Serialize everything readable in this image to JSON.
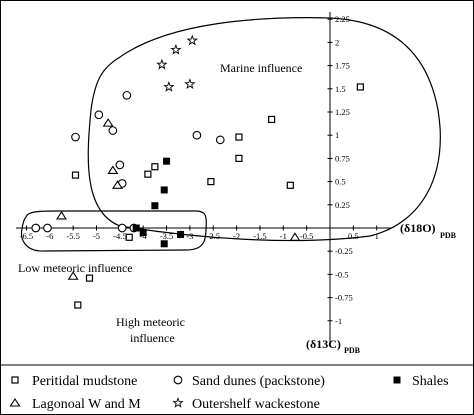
{
  "chart_data": {
    "type": "scatter",
    "x_axis": {
      "label_main": "(δ18O)",
      "label_sub": "PDB",
      "range": [
        -6.5,
        1.3
      ],
      "ticks": [
        -6.5,
        -6,
        -5.5,
        -5,
        -4.5,
        -4,
        -3.5,
        -3,
        -2.5,
        -2,
        -1.5,
        -1,
        -0.5,
        0.5,
        1
      ],
      "tick_labels": [
        "-6.5",
        "-6",
        "-5.5",
        "-5",
        "-4.5",
        "-4",
        "-3.5",
        "-3",
        "-2.5",
        "-2",
        "-1.5",
        "-1",
        "-0.5",
        "0.5",
        "1"
      ]
    },
    "y_axis": {
      "label_main": "(δ13C)",
      "label_sub": "PDB",
      "range": [
        -1.25,
        2.3
      ],
      "ticks": [
        -1,
        -0.75,
        -0.5,
        -0.25,
        0.25,
        0.5,
        0.75,
        1,
        1.25,
        1.5,
        1.75,
        2,
        2.25
      ],
      "tick_labels": [
        "-1",
        "-0.75",
        "-0.5",
        "-0.25",
        "0.25",
        "0.5",
        "0.75",
        "1",
        "1.25",
        "1.5",
        "1.75",
        "2",
        "2.25"
      ]
    },
    "grid": false,
    "legend_position": "bottom",
    "annotations": [
      "Marine influence",
      "Low meteoric influence",
      "High meteoric",
      "influence"
    ],
    "series": [
      {
        "name": "Peritidal mudstone",
        "marker": "square-open",
        "points": [
          [
            0.65,
            1.52
          ],
          [
            -1.25,
            1.17
          ],
          [
            -1.95,
            0.98
          ],
          [
            -1.95,
            0.75
          ],
          [
            -2.55,
            0.5
          ],
          [
            -0.85,
            0.46
          ],
          [
            -5.45,
            0.57
          ],
          [
            -3.9,
            0.58
          ],
          [
            -3.75,
            0.66
          ],
          [
            -4.3,
            -0.1
          ],
          [
            -5.15,
            -0.54
          ],
          [
            -5.4,
            -0.83
          ]
        ]
      },
      {
        "name": "Sand dunes (packstone)",
        "marker": "circle-open",
        "points": [
          [
            -4.35,
            1.43
          ],
          [
            -4.95,
            1.22
          ],
          [
            -5.45,
            0.98
          ],
          [
            -4.65,
            1.05
          ],
          [
            -2.85,
            1.0
          ],
          [
            -2.35,
            0.95
          ],
          [
            -4.5,
            0.68
          ],
          [
            -4.45,
            0.48
          ],
          [
            -4.45,
            0.0
          ],
          [
            -4.2,
            0.0
          ],
          [
            -6.3,
            0.0
          ],
          [
            -6.05,
            0.0
          ]
        ]
      },
      {
        "name": "Shales",
        "marker": "square-filled",
        "points": [
          [
            -3.5,
            0.72
          ],
          [
            -3.55,
            0.41
          ],
          [
            -3.75,
            0.24
          ],
          [
            -3.2,
            -0.07
          ],
          [
            -3.55,
            -0.17
          ],
          [
            -4.0,
            -0.05
          ],
          [
            -4.15,
            0.0
          ]
        ]
      },
      {
        "name": "Lagonoal W and M",
        "marker": "triangle-open",
        "points": [
          [
            -4.75,
            1.13
          ],
          [
            -4.65,
            0.62
          ],
          [
            -4.55,
            0.46
          ],
          [
            -5.75,
            0.13
          ],
          [
            -5.5,
            -0.52
          ],
          [
            -0.75,
            -0.1
          ]
        ]
      },
      {
        "name": "Outershelf wackestone",
        "marker": "star-open",
        "points": [
          [
            -2.95,
            2.02
          ],
          [
            -3.3,
            1.92
          ],
          [
            -3.6,
            1.76
          ],
          [
            -3.0,
            1.55
          ],
          [
            -3.45,
            1.52
          ]
        ]
      }
    ]
  },
  "legend": {
    "items": [
      {
        "label": "Peritidal mudstone",
        "marker": "square-open"
      },
      {
        "label": "Sand dunes (packstone)",
        "marker": "circle-open"
      },
      {
        "label": "Shales",
        "marker": "square-filled"
      },
      {
        "label": "Lagonoal W and M",
        "marker": "triangle-open"
      },
      {
        "label": "Outershelf wackestone",
        "marker": "star-open"
      }
    ]
  }
}
